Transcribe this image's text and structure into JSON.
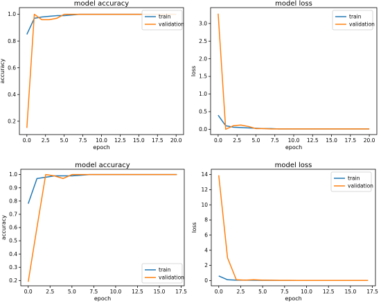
{
  "colors": {
    "train": "#1f77b4",
    "validation": "#ff7f0e"
  },
  "chart_data": [
    {
      "type": "line",
      "title": "model accuracy",
      "xlabel": "epoch",
      "ylabel": "accuracy",
      "xlim": [
        -1,
        21
      ],
      "ylim": [
        0.1,
        1.05
      ],
      "xticks": [
        0.0,
        2.5,
        5.0,
        7.5,
        10.0,
        12.5,
        15.0,
        17.5,
        20.0
      ],
      "yticks": [
        0.2,
        0.4,
        0.6,
        0.8,
        1.0
      ],
      "legend": "upper right",
      "series": [
        {
          "name": "train",
          "color_key": "train",
          "x": [
            0,
            1,
            2,
            3,
            4,
            5,
            6,
            7,
            8,
            9,
            10,
            11,
            12,
            13,
            14,
            15,
            16,
            17,
            18,
            19,
            20
          ],
          "y": [
            0.85,
            0.97,
            0.98,
            0.985,
            0.99,
            0.99,
            0.995,
            1.0,
            1.0,
            1.0,
            1.0,
            1.0,
            1.0,
            1.0,
            1.0,
            1.0,
            1.0,
            1.0,
            1.0,
            1.0,
            1.0
          ]
        },
        {
          "name": "validation",
          "color_key": "validation",
          "x": [
            0,
            1,
            2,
            3,
            4,
            5,
            6,
            7,
            8,
            9,
            10,
            11,
            12,
            13,
            14,
            15,
            16,
            17,
            18,
            19,
            20
          ],
          "y": [
            0.15,
            1.0,
            0.96,
            0.96,
            0.97,
            1.0,
            1.0,
            1.0,
            1.0,
            1.0,
            1.0,
            1.0,
            1.0,
            1.0,
            1.0,
            1.0,
            1.0,
            1.0,
            1.0,
            1.0,
            1.0
          ]
        }
      ]
    },
    {
      "type": "line",
      "title": "model loss",
      "xlabel": "epoch",
      "ylabel": "loss",
      "xlim": [
        -1,
        21
      ],
      "ylim": [
        -0.15,
        3.45
      ],
      "xticks": [
        0.0,
        2.5,
        5.0,
        7.5,
        10.0,
        12.5,
        15.0,
        17.5,
        20.0
      ],
      "yticks": [
        0.0,
        0.5,
        1.0,
        1.5,
        2.0,
        2.5,
        3.0
      ],
      "legend": "upper right",
      "series": [
        {
          "name": "train",
          "color_key": "train",
          "x": [
            0,
            1,
            2,
            3,
            4,
            5,
            6,
            7,
            8,
            9,
            10,
            11,
            12,
            13,
            14,
            15,
            16,
            17,
            18,
            19,
            20
          ],
          "y": [
            0.4,
            0.1,
            0.06,
            0.05,
            0.04,
            0.03,
            0.02,
            0.02,
            0.01,
            0.01,
            0.01,
            0.01,
            0.01,
            0.01,
            0.01,
            0.01,
            0.01,
            0.01,
            0.01,
            0.01,
            0.01
          ]
        },
        {
          "name": "validation",
          "color_key": "validation",
          "x": [
            0,
            1,
            2,
            3,
            4,
            5,
            6,
            7,
            8,
            9,
            10,
            11,
            12,
            13,
            14,
            15,
            16,
            17,
            18,
            19,
            20
          ],
          "y": [
            3.28,
            0.0,
            0.1,
            0.12,
            0.08,
            0.02,
            0.02,
            0.01,
            0.01,
            0.01,
            0.01,
            0.01,
            0.01,
            0.01,
            0.01,
            0.01,
            0.01,
            0.01,
            0.01,
            0.01,
            0.01
          ]
        }
      ]
    },
    {
      "type": "line",
      "title": "model accuracy",
      "xlabel": "epoch",
      "ylabel": "accuracy",
      "xlim": [
        -0.85,
        17.85
      ],
      "ylim": [
        0.16,
        1.04
      ],
      "xticks": [
        0.0,
        2.5,
        5.0,
        7.5,
        10.0,
        12.5,
        15.0,
        17.5
      ],
      "yticks": [
        0.2,
        0.3,
        0.4,
        0.5,
        0.6,
        0.7,
        0.8,
        0.9,
        1.0
      ],
      "legend": "lower right",
      "series": [
        {
          "name": "train",
          "color_key": "train",
          "x": [
            0,
            1,
            2,
            3,
            4,
            5,
            6,
            7,
            8,
            9,
            10,
            11,
            12,
            13,
            14,
            15,
            16,
            17
          ],
          "y": [
            0.78,
            0.97,
            0.98,
            0.99,
            0.99,
            0.99,
            0.995,
            1.0,
            1.0,
            1.0,
            1.0,
            1.0,
            1.0,
            1.0,
            1.0,
            1.0,
            1.0,
            1.0
          ]
        },
        {
          "name": "validation",
          "color_key": "validation",
          "x": [
            0,
            1,
            2,
            3,
            4,
            5,
            6,
            7,
            8,
            9,
            10,
            11,
            12,
            13,
            14,
            15,
            16,
            17
          ],
          "y": [
            0.19,
            0.6,
            1.0,
            0.99,
            0.97,
            1.0,
            1.0,
            1.0,
            1.0,
            1.0,
            1.0,
            1.0,
            1.0,
            1.0,
            1.0,
            1.0,
            1.0,
            1.0
          ]
        }
      ]
    },
    {
      "type": "line",
      "title": "model loss",
      "xlabel": "epoch",
      "ylabel": "loss",
      "xlim": [
        -0.85,
        17.85
      ],
      "ylim": [
        -0.7,
        14.7
      ],
      "xticks": [
        0.0,
        2.5,
        5.0,
        7.5,
        10.0,
        12.5,
        15.0,
        17.5
      ],
      "yticks": [
        0,
        2,
        4,
        6,
        8,
        10,
        12,
        14
      ],
      "legend": "upper right",
      "series": [
        {
          "name": "train",
          "color_key": "train",
          "x": [
            0,
            1,
            2,
            3,
            4,
            5,
            6,
            7,
            8,
            9,
            10,
            11,
            12,
            13,
            14,
            15,
            16,
            17
          ],
          "y": [
            0.6,
            0.1,
            0.05,
            0.04,
            0.03,
            0.02,
            0.02,
            0.01,
            0.01,
            0.01,
            0.01,
            0.01,
            0.01,
            0.01,
            0.01,
            0.01,
            0.01,
            0.01
          ]
        },
        {
          "name": "validation",
          "color_key": "validation",
          "x": [
            0,
            1,
            2,
            3,
            4,
            5,
            6,
            7,
            8,
            9,
            10,
            11,
            12,
            13,
            14,
            15,
            16,
            17
          ],
          "y": [
            13.9,
            3.0,
            0.1,
            0.05,
            0.1,
            0.05,
            0.03,
            0.02,
            0.02,
            0.01,
            0.01,
            0.01,
            0.01,
            0.01,
            0.01,
            0.01,
            0.01,
            0.01
          ]
        }
      ]
    }
  ]
}
